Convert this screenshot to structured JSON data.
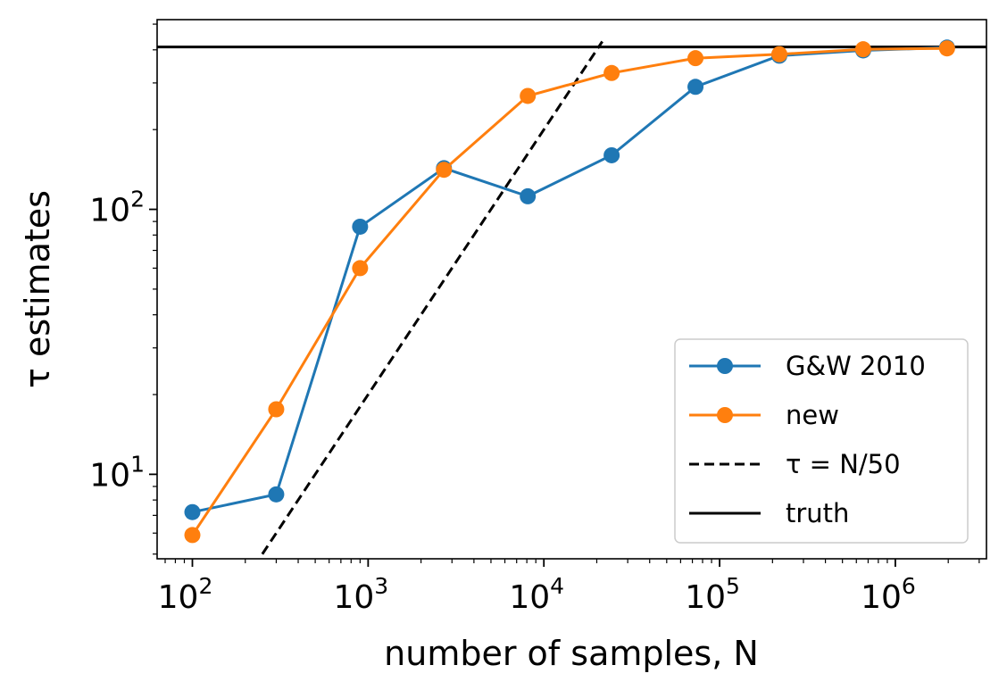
{
  "chart_data": {
    "type": "line",
    "x_scale": "log",
    "y_scale": "log",
    "xlabel": "number of samples, N",
    "ylabel": "τ estimates",
    "xlim": [
      63,
      3300000
    ],
    "ylim": [
      4.8,
      520
    ],
    "x_ticks": [
      {
        "value": 100,
        "base": "10",
        "exp": "2"
      },
      {
        "value": 1000,
        "base": "10",
        "exp": "3"
      },
      {
        "value": 10000,
        "base": "10",
        "exp": "4"
      },
      {
        "value": 100000,
        "base": "10",
        "exp": "5"
      },
      {
        "value": 1000000,
        "base": "10",
        "exp": "6"
      }
    ],
    "y_ticks": [
      {
        "value": 10,
        "base": "10",
        "exp": "1"
      },
      {
        "value": 100,
        "base": "10",
        "exp": "2"
      }
    ],
    "grid": false,
    "legend_position": "lower-right",
    "series": [
      {
        "name": "G&W 2010",
        "color": "#1f77b4",
        "style": "line-marker",
        "x": [
          100,
          300,
          900,
          2700,
          8100,
          24300,
          72900,
          218700,
          656100,
          1968300
        ],
        "y": [
          7.2,
          8.4,
          86,
          143,
          112,
          160,
          290,
          380,
          398,
          408
        ]
      },
      {
        "name": "new",
        "color": "#ff7f0e",
        "style": "line-marker",
        "x": [
          100,
          300,
          900,
          2700,
          8100,
          24300,
          72900,
          218700,
          656100,
          1968300
        ],
        "y": [
          5.9,
          17.6,
          60,
          141,
          268,
          327,
          372,
          385,
          402,
          405
        ]
      },
      {
        "name": "τ = N/50",
        "color": "#000000",
        "style": "dashed",
        "x": [
          250,
          21500
        ],
        "y": [
          5,
          430
        ]
      },
      {
        "name": "truth",
        "color": "#000000",
        "style": "solid-horizontal",
        "y_value": 410
      }
    ]
  }
}
